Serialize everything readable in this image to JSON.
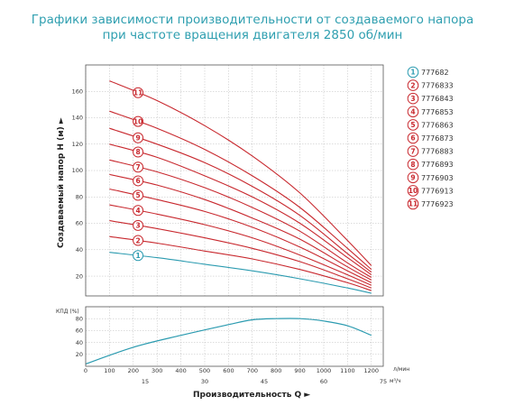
{
  "title_line1": "Графики зависимости производительности от создаваемого напора",
  "title_line2": "при частоте вращения двигателя 2850 об/мин",
  "colors": {
    "red": "#c8282e",
    "teal": "#2b9bb0",
    "axis": "#555555",
    "grid": "#bbbbbb"
  },
  "chart_data": [
    {
      "type": "line",
      "ylabel": "Создаваемый напор H (м) ►",
      "ylim": [
        5,
        180
      ],
      "yticks": [
        20,
        40,
        60,
        80,
        100,
        120,
        140,
        160
      ],
      "xlim": [
        0,
        1250
      ],
      "grid": true,
      "series": [
        {
          "name": "777682",
          "color": "teal",
          "label": "1",
          "x": [
            100,
            300,
            500,
            700,
            900,
            1100,
            1200
          ],
          "y": [
            38,
            34,
            29,
            24,
            18,
            11,
            7
          ]
        },
        {
          "name": "7776833",
          "color": "red",
          "label": "2",
          "x": [
            100,
            300,
            500,
            700,
            900,
            1100,
            1200
          ],
          "y": [
            50,
            45,
            39,
            33,
            25,
            15,
            9
          ]
        },
        {
          "name": "7776843",
          "color": "red",
          "label": "3",
          "x": [
            100,
            300,
            500,
            700,
            900,
            1100,
            1200
          ],
          "y": [
            62,
            56,
            49,
            41,
            31,
            18,
            11
          ]
        },
        {
          "name": "7776853",
          "color": "red",
          "label": "4",
          "x": [
            100,
            300,
            500,
            700,
            900,
            1100,
            1200
          ],
          "y": [
            74,
            67,
            59,
            49,
            36,
            21,
            13
          ]
        },
        {
          "name": "7776863",
          "color": "red",
          "label": "5",
          "x": [
            100,
            300,
            500,
            700,
            900,
            1100,
            1200
          ],
          "y": [
            86,
            78,
            69,
            57,
            42,
            24,
            15
          ]
        },
        {
          "name": "7776873",
          "color": "red",
          "label": "6",
          "x": [
            100,
            300,
            500,
            700,
            900,
            1100,
            1200
          ],
          "y": [
            97,
            89,
            78,
            64,
            48,
            27,
            17
          ]
        },
        {
          "name": "7776883",
          "color": "red",
          "label": "7",
          "x": [
            100,
            300,
            500,
            700,
            900,
            1100,
            1200
          ],
          "y": [
            108,
            99,
            87,
            72,
            54,
            30,
            19
          ]
        },
        {
          "name": "7776893",
          "color": "red",
          "label": "8",
          "x": [
            100,
            300,
            500,
            700,
            900,
            1100,
            1200
          ],
          "y": [
            120,
            110,
            96,
            80,
            60,
            34,
            21
          ]
        },
        {
          "name": "7776903",
          "color": "red",
          "label": "9",
          "x": [
            100,
            300,
            500,
            700,
            900,
            1100,
            1200
          ],
          "y": [
            132,
            120,
            106,
            88,
            66,
            37,
            23
          ]
        },
        {
          "name": "7776913",
          "color": "red",
          "label": "10",
          "x": [
            100,
            300,
            500,
            700,
            900,
            1100,
            1200
          ],
          "y": [
            145,
            132,
            116,
            96,
            72,
            41,
            25
          ]
        },
        {
          "name": "7776923",
          "color": "red",
          "label": "11",
          "x": [
            100,
            300,
            500,
            700,
            900,
            1100,
            1200
          ],
          "y": [
            168,
            153,
            134,
            111,
            83,
            47,
            28
          ]
        }
      ]
    },
    {
      "type": "line",
      "ylabel": "КПД (%)",
      "ylim": [
        0,
        100
      ],
      "yticks": [
        20,
        40,
        60,
        80
      ],
      "xlabel": "Производительность Q ►",
      "xlim": [
        0,
        1250
      ],
      "xticks": [
        0,
        100,
        200,
        300,
        400,
        500,
        600,
        700,
        800,
        900,
        1000,
        1100,
        1200
      ],
      "x_unit": "л/мин",
      "x2ticks": [
        15,
        30,
        45,
        60,
        75
      ],
      "x2_unit": "м³/ч",
      "grid": true,
      "series": [
        {
          "name": "КПД",
          "color": "teal",
          "x": [
            0,
            200,
            400,
            600,
            700,
            800,
            900,
            1000,
            1100,
            1200
          ],
          "y": [
            4,
            32,
            52,
            70,
            78,
            80,
            80,
            76,
            68,
            52
          ]
        }
      ]
    }
  ]
}
